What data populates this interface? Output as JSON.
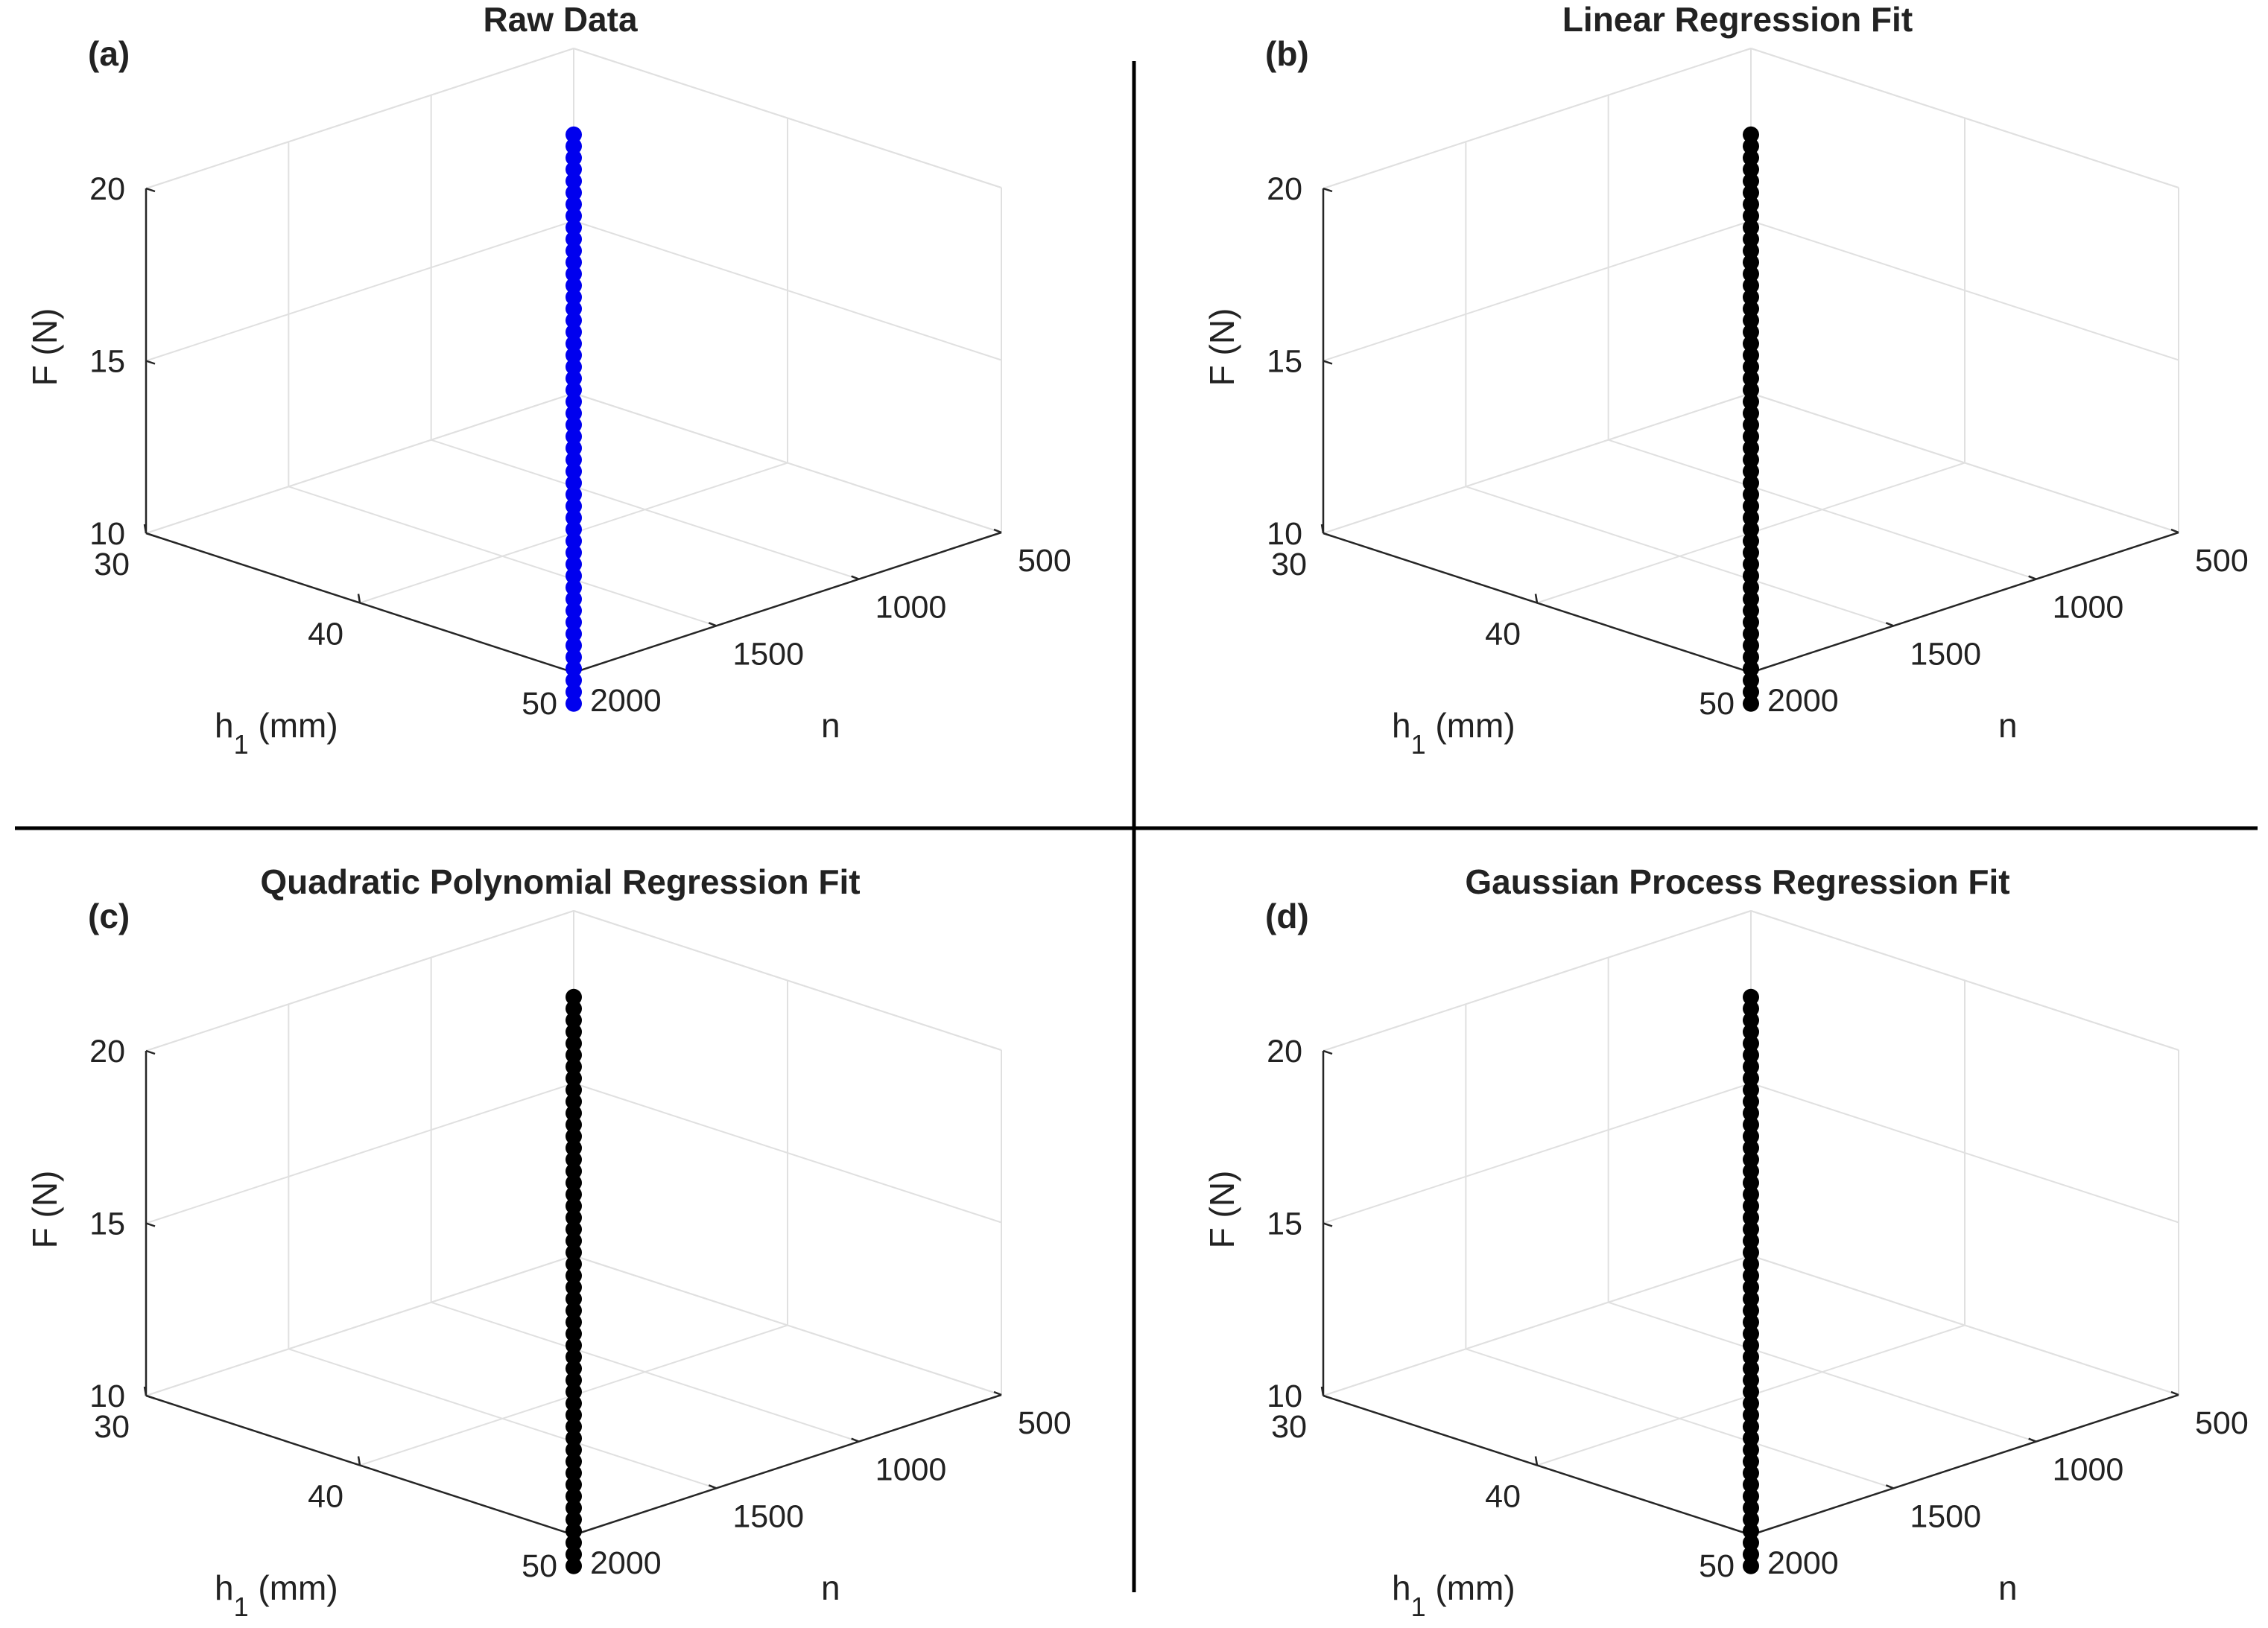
{
  "figure": {
    "background": "#ffffff",
    "divider_color": "#000000"
  },
  "chart_data": [
    {
      "type": "scatter3d",
      "panel_label": "(a)",
      "title": "Raw Data",
      "marker_color": "#0000ee",
      "xlabel_main": "h",
      "xlabel_sub": "1",
      "xlabel_unit": " (mm)",
      "ylabel": "n",
      "zlabel": "F (N)",
      "xlim": [
        30,
        50
      ],
      "ylim": [
        500,
        2000
      ],
      "zlim": [
        10,
        20
      ],
      "xticks": [
        "30",
        "40",
        "50"
      ],
      "yticks": [
        "500",
        "1000",
        "1500",
        "2000"
      ],
      "zticks": [
        "10",
        "15",
        "20"
      ],
      "points": {
        "count": 50,
        "h1": [
          30,
          50
        ],
        "n": [
          500,
          2000
        ],
        "F_start": 17.5,
        "F_end": 9.1
      }
    },
    {
      "type": "scatter3d",
      "panel_label": "(b)",
      "title": "Linear Regression Fit",
      "marker_color": "#000000",
      "xlabel_main": "h",
      "xlabel_sub": "1",
      "xlabel_unit": " (mm)",
      "ylabel": "n",
      "zlabel": "F (N)",
      "xlim": [
        30,
        50
      ],
      "ylim": [
        500,
        2000
      ],
      "zlim": [
        10,
        20
      ],
      "xticks": [
        "30",
        "40",
        "50"
      ],
      "yticks": [
        "500",
        "1000",
        "1500",
        "2000"
      ],
      "zticks": [
        "10",
        "15",
        "20"
      ],
      "points": {
        "count": 50,
        "h1": [
          30,
          50
        ],
        "n": [
          500,
          2000
        ],
        "F_start": 17.5,
        "F_end": 9.1
      }
    },
    {
      "type": "scatter3d",
      "panel_label": "(c)",
      "title": "Quadratic Polynomial Regression Fit",
      "marker_color": "#000000",
      "xlabel_main": "h",
      "xlabel_sub": "1",
      "xlabel_unit": " (mm)",
      "ylabel": "n",
      "zlabel": "F (N)",
      "xlim": [
        30,
        50
      ],
      "ylim": [
        500,
        2000
      ],
      "zlim": [
        10,
        20
      ],
      "xticks": [
        "30",
        "40",
        "50"
      ],
      "yticks": [
        "500",
        "1000",
        "1500",
        "2000"
      ],
      "zticks": [
        "10",
        "15",
        "20"
      ],
      "points": {
        "count": 50,
        "h1": [
          30,
          50
        ],
        "n": [
          500,
          2000
        ],
        "F_start": 17.5,
        "F_end": 9.1
      }
    },
    {
      "type": "scatter3d",
      "panel_label": "(d)",
      "title": "Gaussian Process Regression Fit",
      "marker_color": "#000000",
      "xlabel_main": "h",
      "xlabel_sub": "1",
      "xlabel_unit": " (mm)",
      "ylabel": "n",
      "zlabel": "F (N)",
      "xlim": [
        30,
        50
      ],
      "ylim": [
        500,
        2000
      ],
      "zlim": [
        10,
        20
      ],
      "xticks": [
        "30",
        "40",
        "50"
      ],
      "yticks": [
        "500",
        "1000",
        "1500",
        "2000"
      ],
      "zticks": [
        "10",
        "15",
        "20"
      ],
      "points": {
        "count": 50,
        "h1": [
          30,
          50
        ],
        "n": [
          500,
          2000
        ],
        "F_start": 17.5,
        "F_end": 9.1
      }
    }
  ]
}
